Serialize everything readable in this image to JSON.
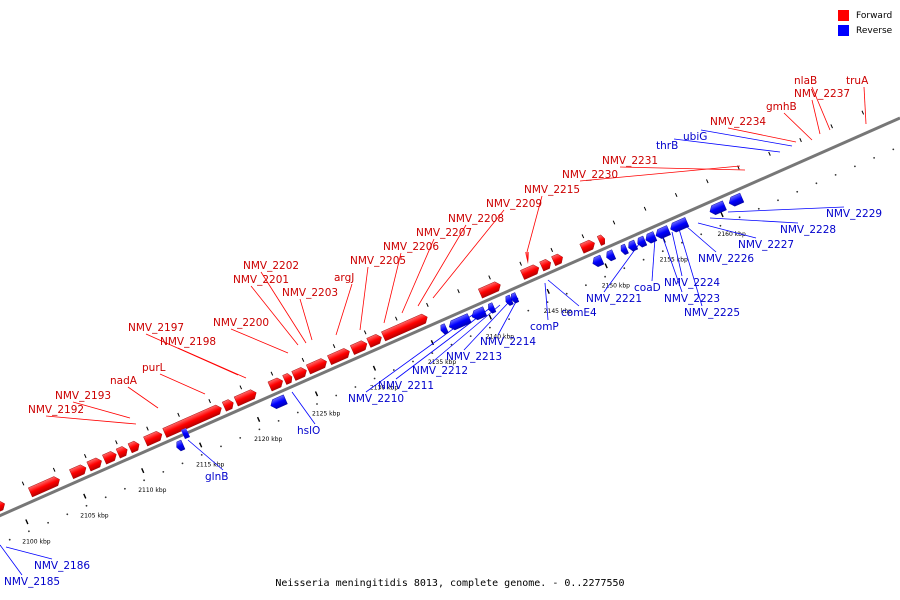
{
  "legend": {
    "forward": {
      "label": "Forward",
      "color": "#ff0000"
    },
    "reverse": {
      "label": "Reverse",
      "color": "#0000ff"
    }
  },
  "caption": "Neisseria meningitidis 8013, complete genome. - 0..2277550",
  "scale": {
    "unit": "kbp",
    "ticks": [
      2100,
      2105,
      2110,
      2115,
      2120,
      2125,
      2130,
      2135,
      2140,
      2145,
      2150,
      2155,
      2160
    ]
  },
  "genes": {
    "forward": [
      "NMV_2192",
      "NMV_2193",
      "nadA",
      "purL",
      "NMV_2198",
      "NMV_2197",
      "NMV_2200",
      "NMV_2201",
      "NMV_2202",
      "NMV_2203",
      "argJ",
      "NMV_2205",
      "NMV_2206",
      "NMV_2207",
      "NMV_2208",
      "NMV_2209",
      "NMV_2215",
      "NMV_2230",
      "NMV_2231",
      "NMV_2234",
      "gmhB",
      "NMV_2237",
      "nlaB",
      "truA"
    ],
    "reverse": [
      "NMV_2185",
      "NMV_2186",
      "glnB",
      "hslO",
      "NMV_2210",
      "NMV_2211",
      "NMV_2212",
      "NMV_2213",
      "NMV_2214",
      "comP",
      "comE4",
      "NMV_2221",
      "coaD",
      "NMV_2224",
      "NMV_2223",
      "NMV_2225",
      "NMV_2226",
      "NMV_2227",
      "NMV_2228",
      "NMV_2229",
      "thrB",
      "ubiG"
    ]
  }
}
